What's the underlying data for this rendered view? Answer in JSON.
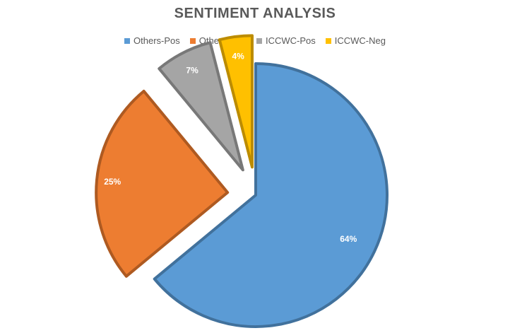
{
  "chart_data": {
    "type": "pie",
    "title": "SENTIMENT ANALYSIS",
    "legend_position": "top",
    "categories": [
      "Others-Pos",
      "Others-Neg",
      "ICCWC-Pos",
      "ICCWC-Neg"
    ],
    "values": [
      64,
      25,
      7,
      4
    ],
    "labels": [
      "64%",
      "25%",
      "7%",
      "4%"
    ],
    "colors": [
      "#5B9BD5",
      "#ED7D31",
      "#A5A5A5",
      "#FFC000"
    ],
    "exploded": true
  }
}
